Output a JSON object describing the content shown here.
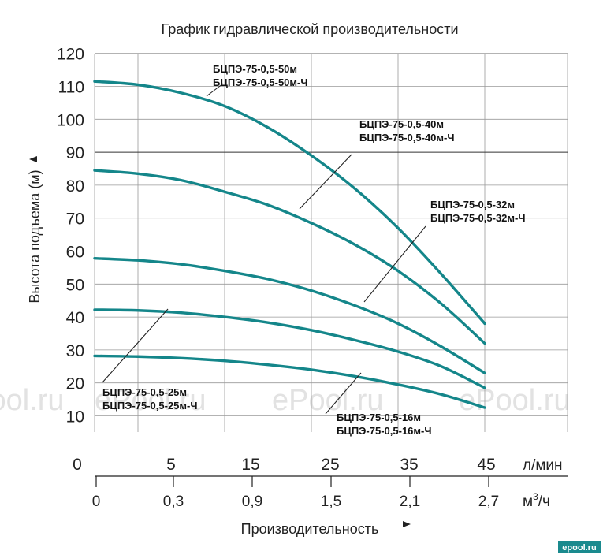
{
  "chart_data": {
    "type": "line",
    "title": "График гидравлической производительности",
    "ylabel": "Высота подъема (м)",
    "xlabel": "Производительность",
    "y_ticks": [
      "10",
      "20",
      "30",
      "40",
      "50",
      "60",
      "70",
      "80",
      "90",
      "100",
      "110",
      "120"
    ],
    "ylim": [
      5,
      120
    ],
    "x_ticks": [
      "0",
      "5",
      "15",
      "25",
      "35",
      "45"
    ],
    "x_unit": "л/мин",
    "x2_ticks": [
      "0",
      "0,3",
      "0,9",
      "1,5",
      "2,1",
      "2,7"
    ],
    "x2_unit_main": "м",
    "x2_unit_sup": "3",
    "x2_unit_tail": "/ч",
    "xlim": [
      0,
      50
    ],
    "grid": true,
    "series": [
      {
        "name": "БЦПЭ-75-0,5-50м",
        "name2": "БЦПЭ-75-0,5-50м-Ч",
        "x": [
          0,
          5,
          10,
          15,
          20,
          25,
          30,
          35,
          40,
          45
        ],
        "y": [
          111.5,
          110.5,
          108,
          104,
          97.5,
          89,
          79,
          67,
          53,
          38
        ]
      },
      {
        "name": "БЦПЭ-75-0,5-40м",
        "name2": "БЦПЭ-75-0,5-40м-Ч",
        "x": [
          0,
          5,
          10,
          15,
          20,
          25,
          30,
          35,
          40,
          45
        ],
        "y": [
          84.5,
          83.5,
          81.5,
          78,
          74,
          68.5,
          62,
          54,
          44,
          32
        ]
      },
      {
        "name": "БЦПЭ-75-0,5-32м",
        "name2": "БЦПЭ-75-0,5-32м-Ч",
        "x": [
          0,
          5,
          10,
          15,
          20,
          25,
          30,
          35,
          40,
          45
        ],
        "y": [
          57.8,
          57.2,
          56,
          54,
          51.5,
          48,
          43.5,
          38,
          31,
          23
        ]
      },
      {
        "name": "БЦПЭ-75-0,5-25м",
        "name2": "БЦПЭ-75-0,5-25м-Ч",
        "x": [
          0,
          5,
          10,
          15,
          20,
          25,
          30,
          35,
          40,
          45
        ],
        "y": [
          42.2,
          42,
          41.3,
          40,
          38.3,
          36,
          33,
          29.5,
          25,
          18.5
        ]
      },
      {
        "name": "БЦПЭ-75-0,5-16м",
        "name2": "БЦПЭ-75-0,5-16м-Ч",
        "x": [
          0,
          5,
          10,
          15,
          20,
          25,
          30,
          35,
          40,
          45
        ],
        "y": [
          28.2,
          28,
          27.5,
          26.7,
          25.5,
          24,
          22,
          19.5,
          16.5,
          12.5
        ]
      }
    ],
    "curve_color": "#14868a"
  },
  "watermarks": [
    "ePool.ru",
    "ePool.ru",
    "ePool.ru",
    "ePool.ru"
  ],
  "logo": "epool.ru"
}
